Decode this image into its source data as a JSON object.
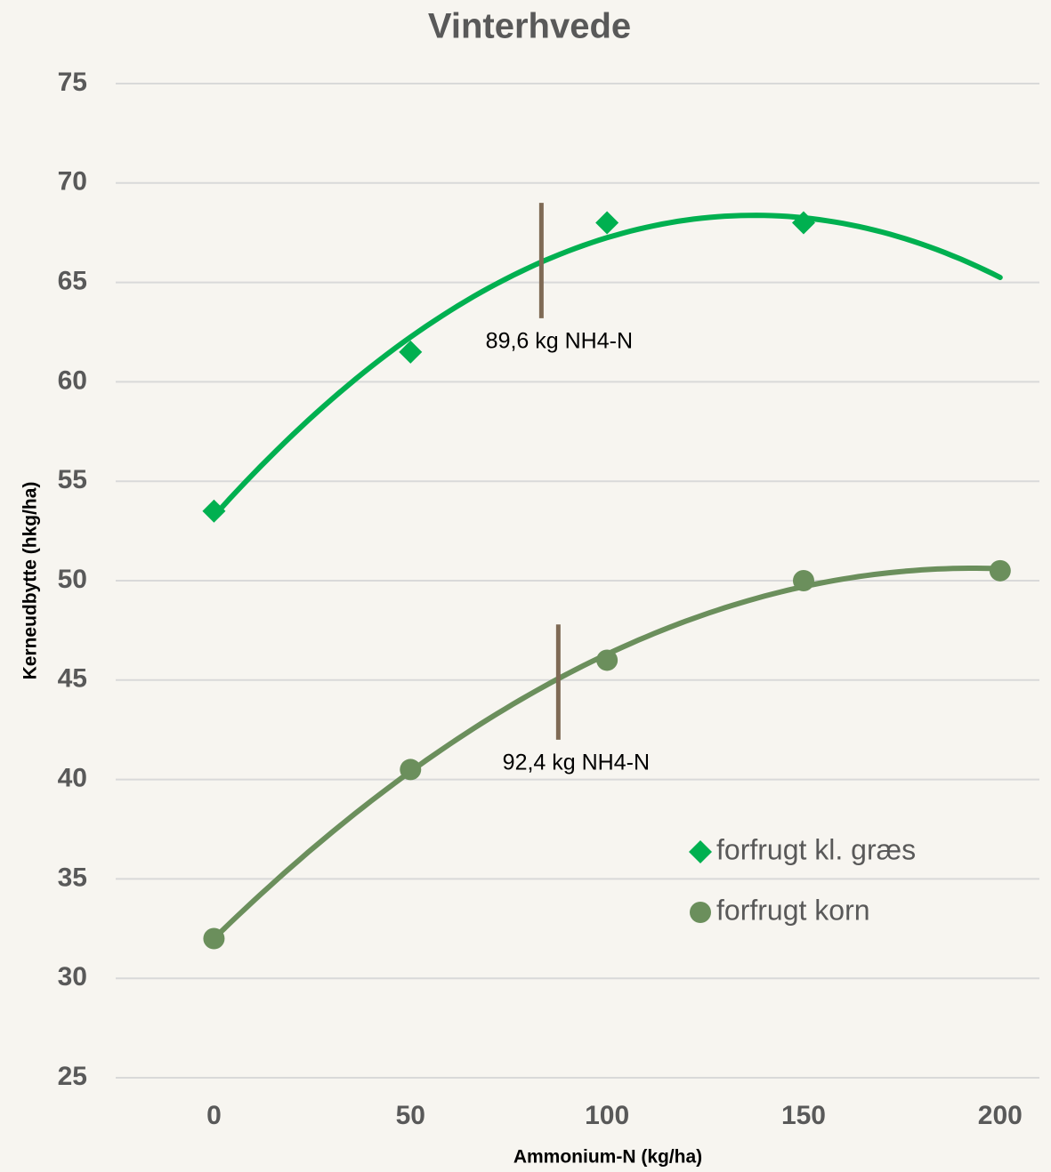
{
  "chart_data": {
    "type": "scatter",
    "title": "Vinterhvede",
    "x_label": "Ammonium-N (kg/ha)",
    "y_label": "Kerneudbytte (hkg/ha)",
    "x": [
      0,
      50,
      100,
      150,
      200
    ],
    "series": [
      {
        "name": "forfrugt kl. græs",
        "color": "#00b050",
        "marker": "diamond",
        "values": [
          53.5,
          61.5,
          68,
          68,
          null
        ],
        "trendline": "polynomial"
      },
      {
        "name": "forfrugt korn",
        "color": "#6b8f5c",
        "marker": "circle",
        "values": [
          32,
          40.5,
          46,
          50,
          50.5
        ],
        "trendline": "polynomial"
      }
    ],
    "annotations": [
      {
        "text": "89,6 kg NH4-N",
        "x": 83.3,
        "y": [
          63.2,
          69
        ],
        "color": "#7f6a55"
      },
      {
        "text": "92,4 kg NH4-N",
        "x": 87.6,
        "y": [
          42,
          47.8
        ],
        "color": "#7f6a55"
      }
    ],
    "xlim": [
      -25,
      210
    ],
    "ylim": [
      25,
      75
    ],
    "xticks": [
      0,
      50,
      100,
      150,
      200
    ],
    "yticks": [
      25,
      30,
      35,
      40,
      45,
      50,
      55,
      60,
      65,
      70,
      75
    ],
    "grid": true,
    "legend": "right"
  }
}
